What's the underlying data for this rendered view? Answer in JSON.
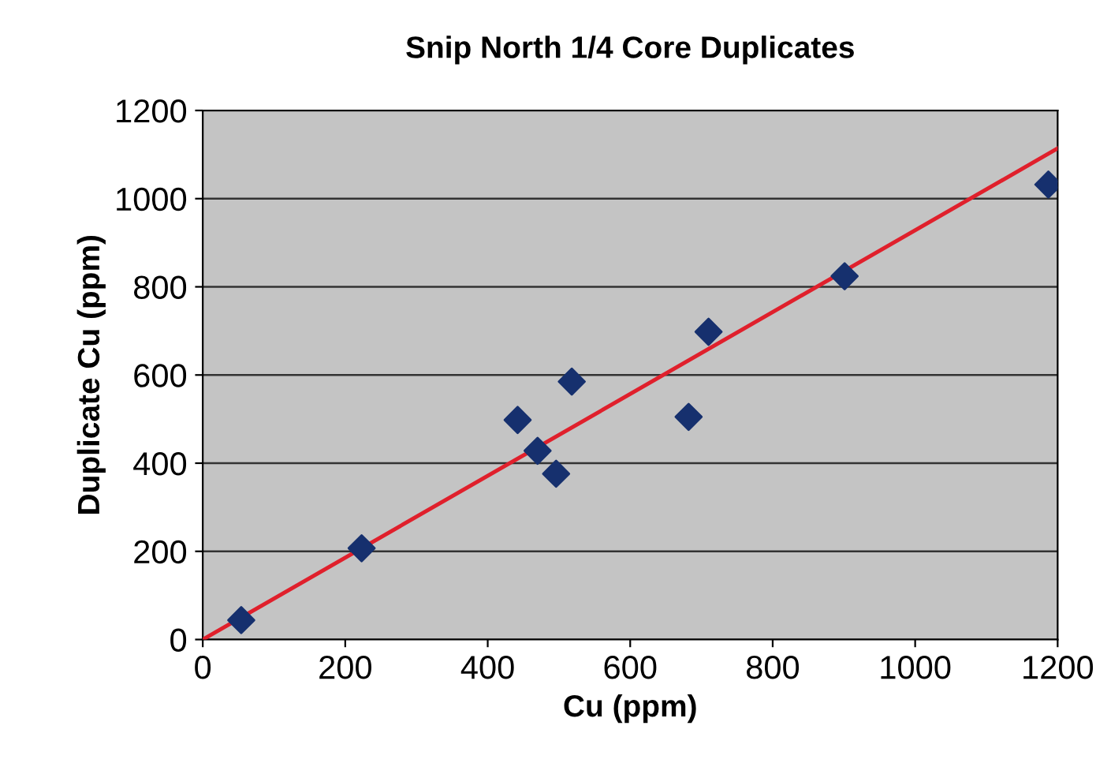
{
  "chart_data": {
    "type": "scatter",
    "title": "Snip North 1/4 Core Duplicates",
    "xlabel": "Cu (ppm)",
    "ylabel": "Duplicate Cu (ppm)",
    "series": [
      {
        "color": "#16306e",
        "marker": "diamond",
        "x": [
          54,
          223,
          442,
          470,
          496,
          518,
          682,
          710,
          901,
          1187
        ],
        "values": [
          44,
          207,
          498,
          428,
          376,
          585,
          505,
          698,
          824,
          1032
        ]
      },
      {
        "type": "line",
        "color": "#e0202c",
        "marker": "none",
        "line_style": "solid",
        "x": [
          0,
          1200
        ],
        "values": [
          0,
          1114
        ]
      }
    ],
    "xlim": [
      0,
      1200
    ],
    "ylim": [
      0,
      1200
    ],
    "xticks": [
      0,
      200,
      400,
      600,
      800,
      1000,
      1200
    ],
    "yticks": [
      0,
      200,
      400,
      600,
      800,
      1000,
      1200
    ],
    "grid": "y",
    "legend": false
  }
}
